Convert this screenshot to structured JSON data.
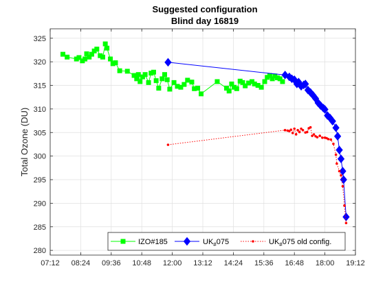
{
  "chart_data": {
    "type": "line",
    "title": "Suggested configuration",
    "subtitle": "Blind day 16819",
    "xlabel": "",
    "ylabel": "Total Ozone (DU)",
    "xlim": [
      "07:12",
      "19:12"
    ],
    "ylim": [
      279,
      327
    ],
    "x_ticks": [
      "07:12",
      "08:24",
      "09:36",
      "10:48",
      "12:00",
      "13:12",
      "14:24",
      "15:36",
      "16:48",
      "18:00",
      "19:12"
    ],
    "y_ticks": [
      280,
      285,
      290,
      295,
      300,
      305,
      310,
      315,
      320,
      325
    ],
    "grid": true,
    "legend_position": "bottom-right",
    "series": [
      {
        "name": "IZO#185",
        "color": "#00ff00",
        "marker": "square",
        "line": "solid",
        "points": [
          [
            "07:42",
            321.6
          ],
          [
            "07:52",
            321.0
          ],
          [
            "08:14",
            320.6
          ],
          [
            "08:20",
            320.9
          ],
          [
            "08:28",
            320.2
          ],
          [
            "08:34",
            320.6
          ],
          [
            "08:38",
            321.7
          ],
          [
            "08:44",
            321.0
          ],
          [
            "08:50",
            321.6
          ],
          [
            "08:56",
            322.3
          ],
          [
            "09:02",
            322.7
          ],
          [
            "09:10",
            321.3
          ],
          [
            "09:16",
            321.0
          ],
          [
            "09:22",
            323.8
          ],
          [
            "09:26",
            322.9
          ],
          [
            "09:34",
            320.6
          ],
          [
            "09:40",
            319.6
          ],
          [
            "09:46",
            319.8
          ],
          [
            "09:56",
            318.1
          ],
          [
            "10:14",
            318.0
          ],
          [
            "10:30",
            317.1
          ],
          [
            "10:36",
            316.4
          ],
          [
            "10:40",
            317.3
          ],
          [
            "10:44",
            315.8
          ],
          [
            "10:50",
            316.8
          ],
          [
            "10:56",
            317.3
          ],
          [
            "11:04",
            315.6
          ],
          [
            "11:10",
            317.6
          ],
          [
            "11:16",
            317.8
          ],
          [
            "11:22",
            316.0
          ],
          [
            "11:28",
            314.4
          ],
          [
            "11:36",
            316.4
          ],
          [
            "11:42",
            317.3
          ],
          [
            "11:48",
            316.2
          ],
          [
            "11:54",
            314.2
          ],
          [
            "12:04",
            315.6
          ],
          [
            "12:12",
            314.8
          ],
          [
            "12:20",
            314.6
          ],
          [
            "12:28",
            315.2
          ],
          [
            "12:36",
            316.1
          ],
          [
            "12:46",
            315.7
          ],
          [
            "12:52",
            314.3
          ],
          [
            "13:00",
            314.4
          ],
          [
            "13:08",
            313.2
          ],
          [
            "13:46",
            315.8
          ],
          [
            "14:08",
            314.4
          ],
          [
            "14:14",
            313.8
          ],
          [
            "14:20",
            315.3
          ],
          [
            "14:26",
            314.6
          ],
          [
            "14:32",
            314.3
          ],
          [
            "14:40",
            315.9
          ],
          [
            "14:46",
            315.6
          ],
          [
            "14:52",
            314.9
          ],
          [
            "15:00",
            315.5
          ],
          [
            "15:08",
            315.8
          ],
          [
            "15:14",
            315.3
          ],
          [
            "15:22",
            315.0
          ],
          [
            "15:30",
            314.6
          ],
          [
            "15:38",
            315.8
          ],
          [
            "15:44",
            316.7
          ],
          [
            "15:50",
            317.1
          ],
          [
            "15:56",
            316.4
          ],
          [
            "16:02",
            317.0
          ],
          [
            "16:08",
            316.6
          ],
          [
            "16:14",
            316.4
          ],
          [
            "16:20",
            315.8
          ]
        ]
      },
      {
        "name": "UK#075",
        "name_parts": [
          "UK",
          "#",
          "075"
        ],
        "color": "#0000ff",
        "marker": "diamond",
        "line": "solid",
        "points": [
          [
            "11:50",
            319.9
          ],
          [
            "16:26",
            317.2
          ],
          [
            "16:36",
            316.8
          ],
          [
            "16:42",
            316.4
          ],
          [
            "16:48",
            316.2
          ],
          [
            "16:54",
            315.3
          ],
          [
            "16:58",
            315.7
          ],
          [
            "17:04",
            314.8
          ],
          [
            "17:10",
            315.1
          ],
          [
            "17:14",
            315.3
          ],
          [
            "17:20",
            314.0
          ],
          [
            "17:26",
            313.5
          ],
          [
            "17:32",
            312.9
          ],
          [
            "17:38",
            312.2
          ],
          [
            "17:44",
            311.3
          ],
          [
            "17:50",
            310.7
          ],
          [
            "17:56",
            310.2
          ],
          [
            "18:00",
            309.9
          ],
          [
            "18:06",
            308.6
          ],
          [
            "18:12",
            308.1
          ],
          [
            "18:18",
            307.4
          ],
          [
            "18:26",
            306.0
          ],
          [
            "18:30",
            304.2
          ],
          [
            "18:34",
            301.3
          ],
          [
            "18:38",
            299.4
          ],
          [
            "18:42",
            296.8
          ],
          [
            "18:44",
            295.0
          ],
          [
            "18:50",
            287.1
          ]
        ]
      },
      {
        "name": "UK#075 old config.",
        "name_parts": [
          "UK",
          "#",
          "075 old config."
        ],
        "color": "#ff0000",
        "marker": "dot",
        "line": "dotted",
        "points": [
          [
            "11:50",
            302.4
          ],
          [
            "16:26",
            305.5
          ],
          [
            "16:32",
            305.4
          ],
          [
            "16:36",
            305.3
          ],
          [
            "16:40",
            305.6
          ],
          [
            "16:44",
            304.9
          ],
          [
            "16:48",
            305.8
          ],
          [
            "16:52",
            304.6
          ],
          [
            "16:56",
            305.5
          ],
          [
            "17:00",
            305.1
          ],
          [
            "17:04",
            305.8
          ],
          [
            "17:08",
            305.5
          ],
          [
            "17:14",
            305.0
          ],
          [
            "17:18",
            305.1
          ],
          [
            "17:22",
            305.9
          ],
          [
            "17:26",
            306.1
          ],
          [
            "17:30",
            304.3
          ],
          [
            "17:34",
            304.6
          ],
          [
            "17:38",
            304.2
          ],
          [
            "17:42",
            304.0
          ],
          [
            "17:48",
            304.3
          ],
          [
            "17:54",
            303.9
          ],
          [
            "18:00",
            303.9
          ],
          [
            "18:04",
            303.8
          ],
          [
            "18:08",
            303.6
          ],
          [
            "18:14",
            303.5
          ],
          [
            "18:20",
            302.6
          ],
          [
            "18:26",
            300.3
          ],
          [
            "18:28",
            298.4
          ],
          [
            "18:34",
            296.8
          ],
          [
            "18:38",
            295.9
          ],
          [
            "18:42",
            293.6
          ],
          [
            "18:46",
            289.5
          ],
          [
            "18:50",
            285.8
          ]
        ]
      }
    ]
  }
}
